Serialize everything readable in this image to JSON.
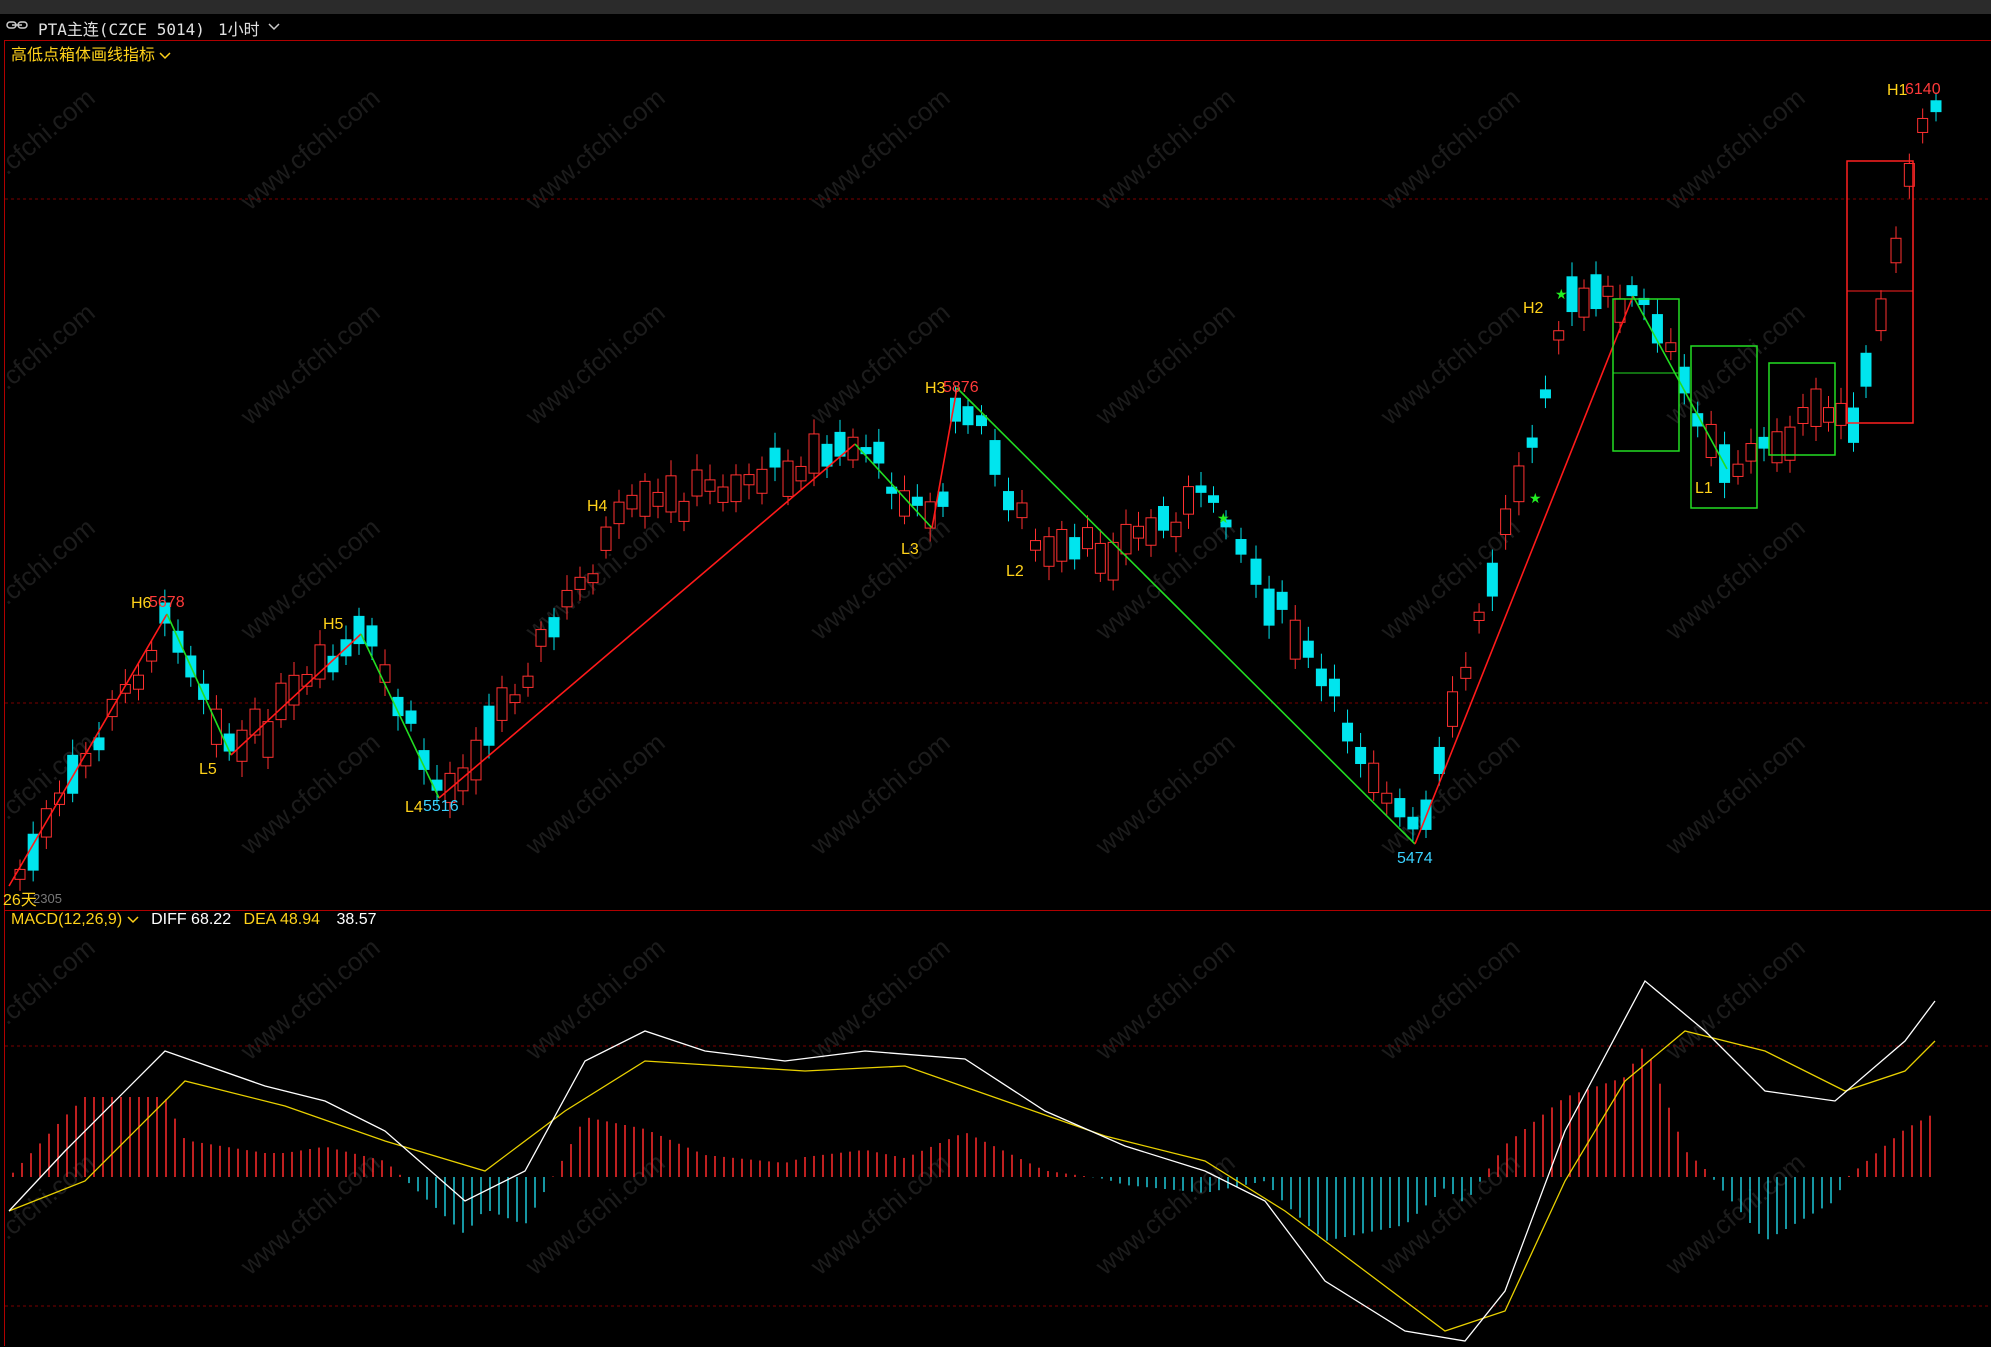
{
  "header": {
    "symbol_label": "PTA主连(CZCE 5014)",
    "period_label": "1小时"
  },
  "main_panel": {
    "indicator_name": "高低点箱体画线指标",
    "bottom_left_date": "26天",
    "bottom_left_code": "2305"
  },
  "macd_panel": {
    "name": "MACD(12,26,9)",
    "diff_label": "DIFF 68.22",
    "dea_label": "DEA 48.94",
    "macd_value": "38.57"
  },
  "colors": {
    "up_candle": "#ff3030",
    "down_candle": "#00e5ee",
    "zigzag_up": "#ff1a1a",
    "zigzag_down": "#22dd22",
    "label_yellow": "#ffd21a",
    "price_red": "#ff3a3a",
    "price_cyan": "#3ad2ff",
    "diff_line": "#ffffff",
    "dea_line": "#e8d000"
  },
  "swing_labels": [
    {
      "name": "H6",
      "price": "5678"
    },
    {
      "name": "L5",
      "price": ""
    },
    {
      "name": "H5",
      "price": ""
    },
    {
      "name": "L4",
      "price": "5516"
    },
    {
      "name": "H4",
      "price": ""
    },
    {
      "name": "H3",
      "price": "5876"
    },
    {
      "name": "L3",
      "price": ""
    },
    {
      "name": "L2",
      "price": ""
    },
    {
      "name": "H2",
      "price": ""
    },
    {
      "name": "L1",
      "price": ""
    },
    {
      "name": "H1",
      "price": "6140"
    },
    {
      "name": "",
      "price": "5474"
    }
  ],
  "watermark": "www.cfchi.com"
}
